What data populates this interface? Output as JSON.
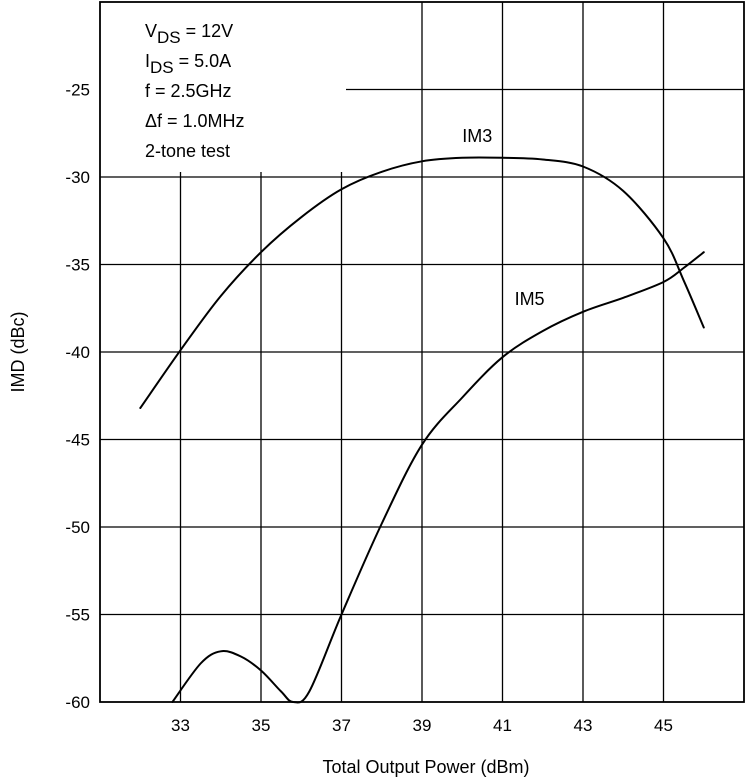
{
  "chart_data": {
    "type": "line",
    "title": "",
    "xlabel": "Total Output Power (dBm)",
    "ylabel": "IMD (dBc)",
    "xlim": [
      31,
      47
    ],
    "ylim": [
      -60,
      -20
    ],
    "x_ticks": [
      33,
      35,
      37,
      39,
      41,
      43,
      45
    ],
    "y_ticks": [
      -25,
      -30,
      -35,
      -40,
      -45,
      -50,
      -55,
      -60
    ],
    "x_tick_labels": [
      "33",
      "35",
      "37",
      "39",
      "41",
      "43",
      "45"
    ],
    "y_tick_labels": [
      "-25",
      "-30",
      "-35",
      "-40",
      "-45",
      "-50",
      "-55",
      "-60"
    ],
    "grid": true,
    "series": [
      {
        "name": "IM3",
        "label_at": [
          40,
          -28
        ],
        "x": [
          32,
          33,
          34,
          35,
          36,
          37,
          38,
          39,
          40,
          41,
          42,
          43,
          44,
          45,
          45.5,
          46
        ],
        "y": [
          -43.2,
          -39.9,
          -36.8,
          -34.3,
          -32.3,
          -30.7,
          -29.7,
          -29.1,
          -28.9,
          -28.9,
          -29.0,
          -29.4,
          -30.8,
          -33.5,
          -35.9,
          -38.6
        ]
      },
      {
        "name": "IM5",
        "label_at": [
          41.3,
          -37.3
        ],
        "x": [
          32.8,
          33.5,
          34,
          34.5,
          35,
          35.5,
          35.8,
          36.2,
          37,
          38,
          39,
          40,
          41,
          42,
          43,
          44,
          45,
          45.5,
          46
        ],
        "y": [
          -60,
          -57.8,
          -57.1,
          -57.4,
          -58.2,
          -59.4,
          -60,
          -59.4,
          -55.0,
          -49.8,
          -45.3,
          -42.6,
          -40.3,
          -38.8,
          -37.7,
          -36.9,
          -36.0,
          -35.2,
          -34.3
        ]
      }
    ],
    "annotations": [
      {
        "main": "V",
        "sub": "DS",
        "rest": " = 12V"
      },
      {
        "main": "I",
        "sub": "DS",
        "rest": " = 5.0A"
      },
      {
        "main": "f = 2.5GHz",
        "sub": "",
        "rest": ""
      },
      {
        "main": "Δf = 1.0MHz",
        "sub": "",
        "rest": ""
      },
      {
        "main": "2-tone test",
        "sub": "",
        "rest": ""
      }
    ]
  }
}
